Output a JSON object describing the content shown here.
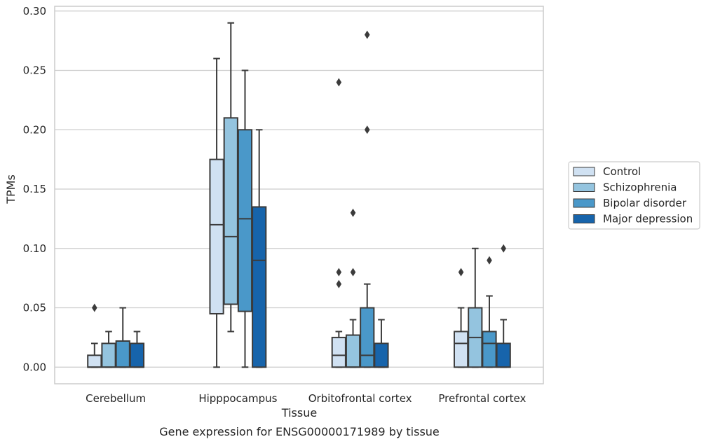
{
  "chart_data": {
    "type": "box",
    "title": "",
    "caption": "Gene expression for ENSG00000171989 by tissue",
    "xlabel": "Tissue",
    "ylabel": "TPMs",
    "ylim": [
      -0.014,
      0.304
    ],
    "yticks": [
      "0.00",
      "0.05",
      "0.10",
      "0.15",
      "0.20",
      "0.25",
      "0.30"
    ],
    "grid": "horizontal",
    "legend_position": "right",
    "categories": [
      "Cerebellum",
      "Hipppocampus",
      "Orbitofrontal cortex",
      "Prefrontal cortex"
    ],
    "series": [
      {
        "name": "Control",
        "color": "#d0e1f2",
        "boxes": [
          {
            "whisker_low": 0.0,
            "q1": 0.0,
            "median": 0.0,
            "q3": 0.01,
            "whisker_high": 0.02,
            "outliers": [
              0.05
            ]
          },
          {
            "whisker_low": 0.0,
            "q1": 0.045,
            "median": 0.12,
            "q3": 0.175,
            "whisker_high": 0.26,
            "outliers": []
          },
          {
            "whisker_low": 0.0,
            "q1": 0.0,
            "median": 0.01,
            "q3": 0.025,
            "whisker_high": 0.03,
            "outliers": [
              0.07,
              0.08,
              0.24
            ]
          },
          {
            "whisker_low": 0.0,
            "q1": 0.0,
            "median": 0.02,
            "q3": 0.03,
            "whisker_high": 0.05,
            "outliers": [
              0.08
            ]
          }
        ]
      },
      {
        "name": "Schizophrenia",
        "color": "#94c4df",
        "boxes": [
          {
            "whisker_low": 0.0,
            "q1": 0.0,
            "median": 0.0,
            "q3": 0.02,
            "whisker_high": 0.03,
            "outliers": []
          },
          {
            "whisker_low": 0.03,
            "q1": 0.053,
            "median": 0.11,
            "q3": 0.21,
            "whisker_high": 0.29,
            "outliers": []
          },
          {
            "whisker_low": 0.0,
            "q1": 0.0,
            "median": 0.0,
            "q3": 0.027,
            "whisker_high": 0.04,
            "outliers": [
              0.08,
              0.13
            ]
          },
          {
            "whisker_low": 0.0,
            "q1": 0.0,
            "median": 0.025,
            "q3": 0.05,
            "whisker_high": 0.1,
            "outliers": []
          }
        ]
      },
      {
        "name": "Bipolar disorder",
        "color": "#4a98c9",
        "boxes": [
          {
            "whisker_low": 0.0,
            "q1": 0.0,
            "median": 0.0,
            "q3": 0.022,
            "whisker_high": 0.05,
            "outliers": []
          },
          {
            "whisker_low": 0.0,
            "q1": 0.047,
            "median": 0.125,
            "q3": 0.2,
            "whisker_high": 0.25,
            "outliers": []
          },
          {
            "whisker_low": 0.0,
            "q1": 0.0,
            "median": 0.01,
            "q3": 0.05,
            "whisker_high": 0.07,
            "outliers": [
              0.2,
              0.28
            ]
          },
          {
            "whisker_low": 0.0,
            "q1": 0.0,
            "median": 0.02,
            "q3": 0.03,
            "whisker_high": 0.06,
            "outliers": [
              0.09
            ]
          }
        ]
      },
      {
        "name": "Major depression",
        "color": "#1764ab",
        "boxes": [
          {
            "whisker_low": 0.0,
            "q1": 0.0,
            "median": 0.0,
            "q3": 0.02,
            "whisker_high": 0.03,
            "outliers": []
          },
          {
            "whisker_low": 0.0,
            "q1": 0.0,
            "median": 0.09,
            "q3": 0.135,
            "whisker_high": 0.2,
            "outliers": []
          },
          {
            "whisker_low": 0.0,
            "q1": 0.0,
            "median": 0.0,
            "q3": 0.02,
            "whisker_high": 0.04,
            "outliers": []
          },
          {
            "whisker_low": 0.0,
            "q1": 0.0,
            "median": 0.0,
            "q3": 0.02,
            "whisker_high": 0.04,
            "outliers": [
              0.1
            ]
          }
        ]
      }
    ],
    "colors": {
      "grid": "#cccccc",
      "frame": "#cccccc",
      "edge": "#3b3b3b",
      "legend_border": "#cccccc"
    }
  }
}
